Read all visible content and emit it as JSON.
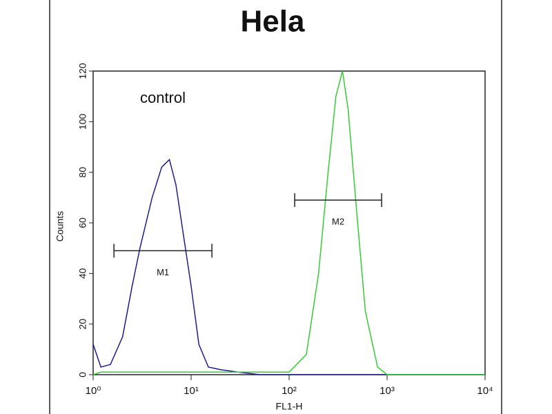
{
  "chart_data": {
    "type": "line",
    "title": "Hela",
    "annotation": "control",
    "x_label": "FL1-H",
    "y_label": "Counts",
    "xscale": "log",
    "xlim": [
      1,
      10000
    ],
    "xticks": [
      {
        "value": 1,
        "label": "10⁰"
      },
      {
        "value": 10,
        "label": "10¹"
      },
      {
        "value": 100,
        "label": "10²"
      },
      {
        "value": 1000,
        "label": "10³"
      },
      {
        "value": 10000,
        "label": "10⁴"
      }
    ],
    "ylim": [
      0,
      120
    ],
    "yticks": [
      0,
      20,
      40,
      60,
      80,
      100,
      120
    ],
    "x": [
      1,
      1.2,
      1.5,
      2,
      2.5,
      3,
      4,
      5,
      6,
      7,
      8,
      10,
      12,
      15,
      20,
      30,
      50,
      80,
      100,
      150,
      200,
      250,
      300,
      350,
      400,
      500,
      600,
      800,
      1000,
      2000,
      5000,
      10000
    ],
    "series": [
      {
        "color": "#1c1c8a",
        "values": [
          12,
          3,
          4,
          15,
          35,
          50,
          70,
          82,
          85,
          75,
          60,
          35,
          12,
          3,
          2,
          1,
          0,
          0,
          0,
          0,
          0,
          0,
          0,
          0,
          0,
          0,
          0,
          0,
          0,
          0,
          0,
          0
        ]
      },
      {
        "color": "#33cc33",
        "values": [
          0,
          1,
          1,
          1,
          1,
          1,
          1,
          1,
          1,
          1,
          1,
          1,
          1,
          1,
          1,
          1,
          1,
          1,
          1,
          8,
          40,
          80,
          110,
          120,
          105,
          60,
          25,
          3,
          0,
          0,
          0,
          0
        ]
      }
    ],
    "gates": [
      {
        "label": "M1",
        "range": [
          1.63,
          16.3
        ],
        "level": 49
      },
      {
        "label": "M2",
        "range": [
          114,
          879
        ],
        "level": 69
      }
    ]
  }
}
